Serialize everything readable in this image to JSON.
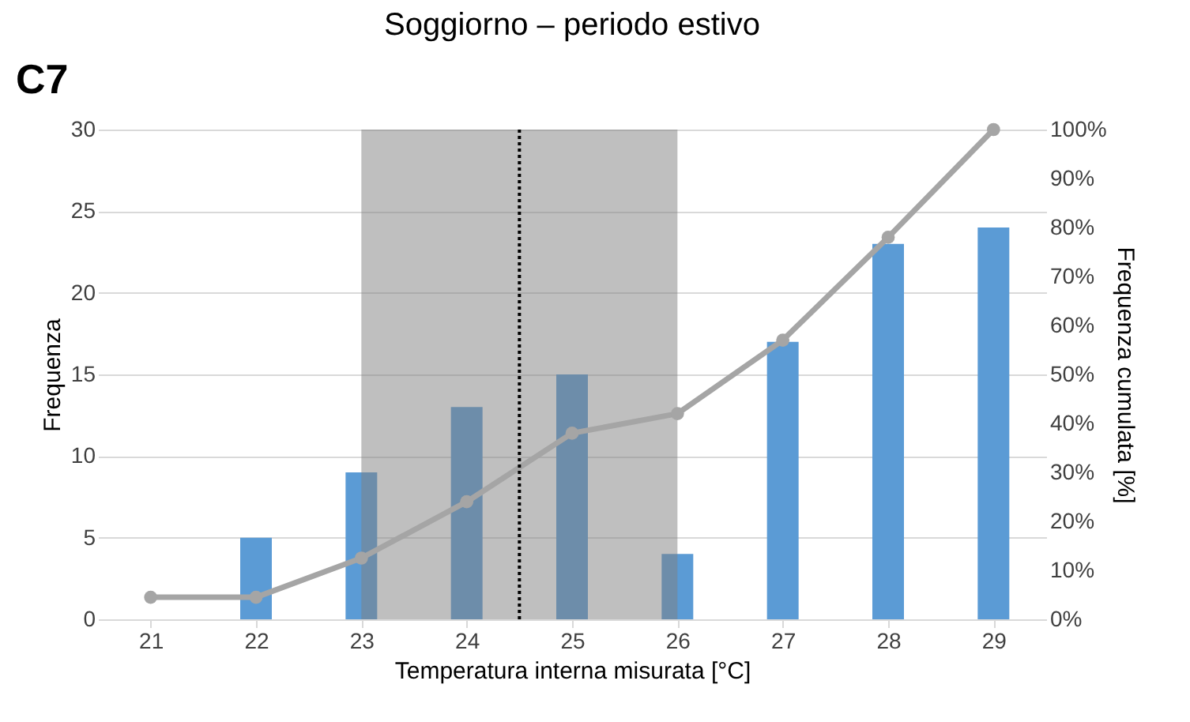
{
  "chart_data": {
    "type": "bar",
    "title": "Soggiorno – periodo estivo",
    "xlabel": "Temperatura interna misurata [°C]",
    "ylabel": "Frequenza",
    "y2label": "Frequenza cumulata [%]",
    "annotations": [
      "C7"
    ],
    "x": [
      21,
      22,
      23,
      24,
      25,
      26,
      27,
      28,
      29
    ],
    "xlim": [
      20.5,
      29.5
    ],
    "xticks": [
      21,
      22,
      23,
      24,
      25,
      26,
      27,
      28,
      29
    ],
    "ylim": [
      0,
      30
    ],
    "yticks": [
      0,
      5,
      10,
      15,
      20,
      25,
      30
    ],
    "y2lim": [
      0,
      100
    ],
    "y2ticks": [
      {
        "value": 0,
        "label": "0%"
      },
      {
        "value": 10,
        "label": "10%"
      },
      {
        "value": 20,
        "label": "20%"
      },
      {
        "value": 30,
        "label": "30%"
      },
      {
        "value": 40,
        "label": "40%"
      },
      {
        "value": 50,
        "label": "50%"
      },
      {
        "value": 60,
        "label": "60%"
      },
      {
        "value": 70,
        "label": "70%"
      },
      {
        "value": 80,
        "label": "80%"
      },
      {
        "value": 90,
        "label": "90%"
      },
      {
        "value": 100,
        "label": "100%"
      }
    ],
    "series": [
      {
        "color": "#5b9bd5",
        "values": [
          0,
          5,
          9,
          13,
          15,
          4,
          17,
          23,
          24
        ]
      },
      {
        "type": "line",
        "axis": "y2",
        "color": "#a5a5a5",
        "marker": "circle",
        "line_style": "solid",
        "values": [
          4.5,
          4.5,
          12.5,
          24,
          38,
          42,
          57,
          78,
          100
        ]
      }
    ],
    "bands": [
      {
        "axis": "x",
        "from": 23,
        "to": 26,
        "color": "#808080"
      }
    ],
    "ref_lines": [
      {
        "axis": "x",
        "value": 24.5,
        "color": "#000000",
        "line_style": "dotted"
      }
    ],
    "grid": "y"
  }
}
